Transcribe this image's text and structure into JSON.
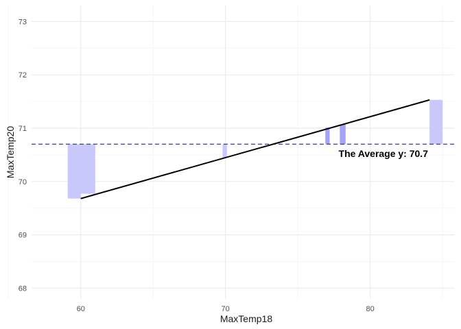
{
  "chart_data": {
    "type": "bar",
    "description_type": "rect-range-with-line",
    "title": "",
    "xlabel": "MaxTemp18",
    "ylabel": "MaxTemp20",
    "xlim": [
      56.6,
      85.8
    ],
    "ylim": [
      67.8,
      73.3
    ],
    "x_major_ticks": [
      60,
      70,
      80
    ],
    "x_minor_ticks": [
      55,
      65,
      75,
      85
    ],
    "y_major_ticks": [
      68,
      69,
      70,
      71,
      72,
      73
    ],
    "y_minor_ticks": [
      68.5,
      69.5,
      70.5,
      71.5,
      72.5
    ],
    "grid": true,
    "average_y": 70.7,
    "average_label": "The Average y: 70.7",
    "residual_bars": [
      {
        "x0": 59.1,
        "x1": 60.0,
        "y0": 69.68,
        "y1": 70.7,
        "style": "light"
      },
      {
        "x0": 60.0,
        "x1": 61.0,
        "y0": 69.77,
        "y1": 70.7,
        "style": "light"
      },
      {
        "x0": 69.8,
        "x1": 70.1,
        "y0": 70.45,
        "y1": 70.7,
        "style": "light"
      },
      {
        "x0": 76.9,
        "x1": 77.2,
        "y0": 70.7,
        "y1": 71.01,
        "style": "dark"
      },
      {
        "x0": 77.9,
        "x1": 78.3,
        "y0": 70.7,
        "y1": 71.07,
        "style": "dark"
      },
      {
        "x0": 84.1,
        "x1": 85.0,
        "y0": 70.7,
        "y1": 71.53,
        "style": "light"
      }
    ],
    "fit_line": {
      "x": [
        60.0,
        84.1
      ],
      "y": [
        69.68,
        71.53
      ]
    },
    "colors": {
      "bar_light": "#c8c8fb",
      "bar_dark": "#a3a3f7",
      "average_line": "#2e2a6b",
      "fit_line": "#000000",
      "grid_major": "#ebebeb",
      "grid_minor": "#f5f5f5"
    }
  }
}
